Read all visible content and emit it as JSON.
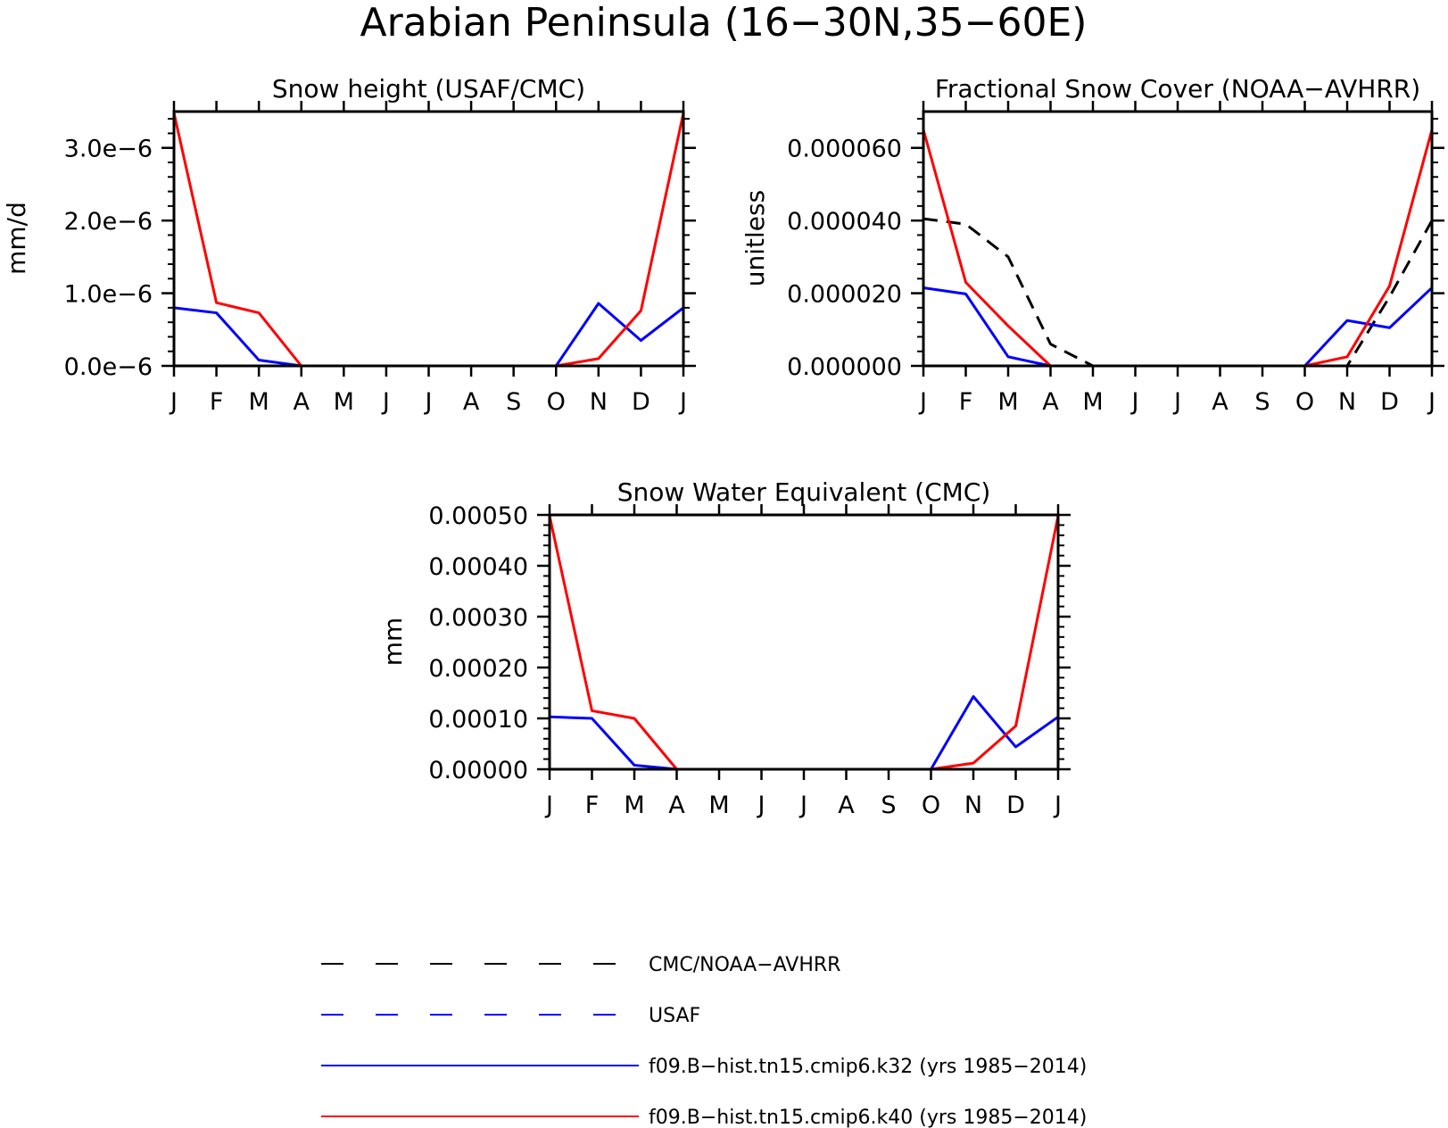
{
  "title": "Arabian Peninsula (16−30N,35−60E)",
  "colors": {
    "obs_primary": "#000000",
    "obs_usaf": "#0000ff",
    "k32": "#0000ff",
    "k40": "#ff0000"
  },
  "chart_data": [
    {
      "type": "line",
      "title": "Snow height (USAF/CMC)",
      "xlabel": "",
      "ylabel": "mm/d",
      "categories": [
        "J",
        "F",
        "M",
        "A",
        "M",
        "J",
        "J",
        "A",
        "S",
        "O",
        "N",
        "D",
        "J"
      ],
      "ylim": [
        0,
        3.5e-06
      ],
      "yticks": [
        0,
        1e-06,
        2e-06,
        3e-06
      ],
      "ytick_labels": [
        "0.0e−6",
        "1.0e−6",
        "2.0e−6",
        "3.0e−6"
      ],
      "series": [
        {
          "name": "f09.B−hist.tn15.cmip6.k32 (yrs 1985−2014)",
          "color": "#0000ff",
          "dash": false,
          "values": [
            8e-07,
            7.3e-07,
            8e-08,
            0,
            0,
            0,
            0,
            0,
            0,
            0,
            8.6e-07,
            3.5e-07,
            8e-07
          ]
        },
        {
          "name": "f09.B−hist.tn15.cmip6.k40 (yrs 1985−2014)",
          "color": "#ff0000",
          "dash": false,
          "values": [
            3.48e-06,
            8.7e-07,
            7.3e-07,
            0,
            0,
            0,
            0,
            0,
            0,
            0,
            1e-07,
            7.6e-07,
            3.48e-06
          ]
        }
      ]
    },
    {
      "type": "line",
      "title": "Fractional Snow Cover (NOAA−AVHRR)",
      "xlabel": "",
      "ylabel": "unitless",
      "categories": [
        "J",
        "F",
        "M",
        "A",
        "M",
        "J",
        "J",
        "A",
        "S",
        "O",
        "N",
        "D",
        "J"
      ],
      "ylim": [
        0,
        7e-05
      ],
      "yticks": [
        0,
        2e-05,
        4e-05,
        6e-05
      ],
      "ytick_labels": [
        "0.000000",
        "0.000020",
        "0.000040",
        "0.000060"
      ],
      "series": [
        {
          "name": "CMC/NOAA−AVHRR",
          "color": "#000000",
          "dash": true,
          "values": [
            4.05e-05,
            3.9e-05,
            3e-05,
            6e-06,
            0,
            0,
            0,
            0,
            0,
            0,
            0,
            1.9e-05,
            4e-05
          ]
        },
        {
          "name": "f09.B−hist.tn15.cmip6.k32 (yrs 1985−2014)",
          "color": "#0000ff",
          "dash": false,
          "values": [
            2.15e-05,
            1.98e-05,
            2.5e-06,
            0,
            0,
            0,
            0,
            0,
            0,
            0,
            1.25e-05,
            1.05e-05,
            2.15e-05
          ]
        },
        {
          "name": "f09.B−hist.tn15.cmip6.k40 (yrs 1985−2014)",
          "color": "#ff0000",
          "dash": false,
          "values": [
            6.5e-05,
            2.3e-05,
            1.1e-05,
            0,
            0,
            0,
            0,
            0,
            0,
            0,
            2.5e-06,
            2.2e-05,
            6.5e-05
          ]
        }
      ]
    },
    {
      "type": "line",
      "title": "Snow Water Equivalent (CMC)",
      "xlabel": "",
      "ylabel": "mm",
      "categories": [
        "J",
        "F",
        "M",
        "A",
        "M",
        "J",
        "J",
        "A",
        "S",
        "O",
        "N",
        "D",
        "J"
      ],
      "ylim": [
        0,
        0.0005
      ],
      "yticks": [
        0,
        0.0001,
        0.0002,
        0.0003,
        0.0004,
        0.0005
      ],
      "ytick_labels": [
        "0.00000",
        "0.00010",
        "0.00020",
        "0.00030",
        "0.00040",
        "0.00050"
      ],
      "series": [
        {
          "name": "f09.B−hist.tn15.cmip6.k32 (yrs 1985−2014)",
          "color": "#0000ff",
          "dash": false,
          "values": [
            0.000103,
            0.0001,
            8e-06,
            0,
            0,
            0,
            0,
            0,
            0,
            0,
            0.000143,
            4.4e-05,
            0.000103
          ]
        },
        {
          "name": "f09.B−hist.tn15.cmip6.k40 (yrs 1985−2014)",
          "color": "#ff0000",
          "dash": false,
          "values": [
            0.000498,
            0.000115,
            0.0001,
            0,
            0,
            0,
            0,
            0,
            0,
            0,
            1.2e-05,
            8.5e-05,
            0.000498
          ]
        }
      ]
    }
  ],
  "legend": {
    "placement": "bottom",
    "entries": [
      {
        "label": "CMC/NOAA−AVHRR",
        "color": "#000000",
        "dash": true
      },
      {
        "label": "USAF",
        "color": "#0000ff",
        "dash": true
      },
      {
        "label": "f09.B−hist.tn15.cmip6.k32 (yrs 1985−2014)",
        "color": "#0000ff",
        "dash": false
      },
      {
        "label": "f09.B−hist.tn15.cmip6.k40 (yrs 1985−2014)",
        "color": "#ff0000",
        "dash": false
      }
    ]
  }
}
